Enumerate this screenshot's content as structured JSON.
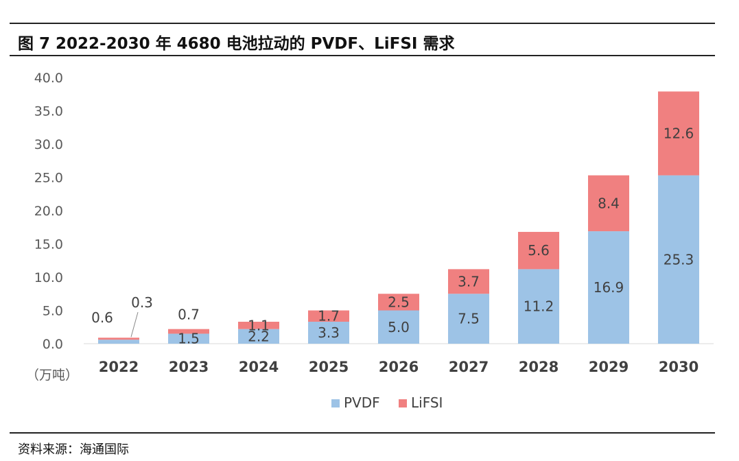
{
  "title": "图 7 2022-2030 年 4680 电池拉动的 PVDF、LiFSI 需求",
  "source": "资料来源：海通国际",
  "colors": {
    "pvdf": "#9dc3e6",
    "lifsi": "#f08080"
  },
  "chart_data": {
    "type": "bar",
    "stacked": true,
    "categories": [
      "2022",
      "2023",
      "2024",
      "2025",
      "2026",
      "2027",
      "2028",
      "2029",
      "2030"
    ],
    "series": [
      {
        "name": "PVDF",
        "values": [
          0.6,
          1.5,
          2.2,
          3.3,
          5.0,
          7.5,
          11.2,
          16.9,
          25.3
        ]
      },
      {
        "name": "LiFSI",
        "values": [
          0.3,
          0.7,
          1.1,
          1.7,
          2.5,
          3.7,
          5.6,
          8.4,
          12.6
        ]
      }
    ],
    "yticks": [
      "0.0",
      "5.0",
      "10.0",
      "15.0",
      "20.0",
      "25.0",
      "30.0",
      "35.0",
      "40.0"
    ],
    "ylim": [
      0,
      40
    ],
    "unit_label": "（万吨）",
    "grid": false,
    "legend_position": "bottom"
  }
}
